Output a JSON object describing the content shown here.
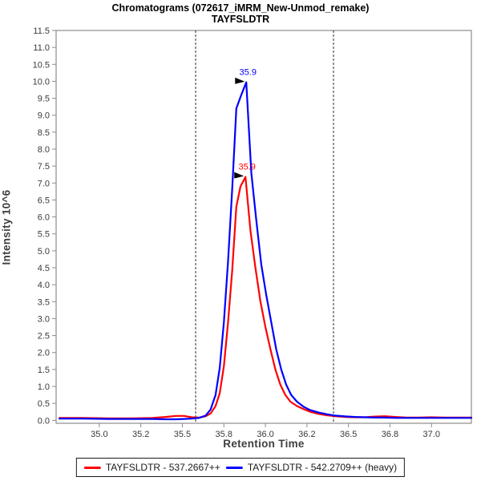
{
  "title": {
    "line1": "Chromatograms (072617_iMRM_New-Unmod_remake)",
    "line2": "TAYFSLDTR"
  },
  "chart_data": {
    "type": "line",
    "title": "Chromatograms (072617_iMRM_New-Unmod_remake)",
    "subtitle": "TAYFSLDTR",
    "xlabel": "Retention Time",
    "ylabel": "Intensity 10^6",
    "xlim": [
      34.74,
      37.24
    ],
    "ylim": [
      0,
      11.5
    ],
    "grid": false,
    "legend_position": "bottom",
    "y_ticks": {
      "min": 0,
      "max": 11.5,
      "step": 0.5,
      "decimals": 1
    },
    "x_ticks": {
      "values": [
        35.0,
        35.25,
        35.5,
        35.75,
        36.0,
        36.25,
        36.5,
        36.75,
        37.0
      ],
      "labels": [
        "35.0",
        "35.2",
        "35.5",
        "35.8",
        "36.0",
        "36.2",
        "36.5",
        "36.8",
        "37.0"
      ]
    },
    "integration_boundaries": [
      35.58,
      36.41
    ],
    "series": [
      {
        "name": "TAYFSLDTR - 537.2667++",
        "color": "#ff0000",
        "peak_annotation": "35.9",
        "points": [
          [
            34.76,
            0.07
          ],
          [
            34.9,
            0.07
          ],
          [
            35.05,
            0.06
          ],
          [
            35.2,
            0.06
          ],
          [
            35.32,
            0.07
          ],
          [
            35.4,
            0.1
          ],
          [
            35.46,
            0.13
          ],
          [
            35.51,
            0.13
          ],
          [
            35.555,
            0.09
          ],
          [
            35.6,
            0.08
          ],
          [
            35.64,
            0.12
          ],
          [
            35.67,
            0.2
          ],
          [
            35.7,
            0.42
          ],
          [
            35.725,
            0.8
          ],
          [
            35.75,
            1.6
          ],
          [
            35.775,
            2.9
          ],
          [
            35.8,
            4.4
          ],
          [
            35.825,
            6.3
          ],
          [
            35.85,
            6.9
          ],
          [
            35.88,
            7.18
          ],
          [
            35.91,
            5.6
          ],
          [
            35.94,
            4.5
          ],
          [
            35.97,
            3.5
          ],
          [
            36.0,
            2.75
          ],
          [
            36.03,
            2.1
          ],
          [
            36.06,
            1.5
          ],
          [
            36.09,
            1.05
          ],
          [
            36.12,
            0.75
          ],
          [
            36.15,
            0.55
          ],
          [
            36.19,
            0.42
          ],
          [
            36.23,
            0.33
          ],
          [
            36.27,
            0.25
          ],
          [
            36.32,
            0.19
          ],
          [
            36.37,
            0.15
          ],
          [
            36.42,
            0.12
          ],
          [
            36.48,
            0.1
          ],
          [
            36.54,
            0.09
          ],
          [
            36.6,
            0.09
          ],
          [
            36.66,
            0.11
          ],
          [
            36.72,
            0.12
          ],
          [
            36.78,
            0.1
          ],
          [
            36.85,
            0.08
          ],
          [
            36.92,
            0.08
          ],
          [
            37.0,
            0.09
          ],
          [
            37.08,
            0.08
          ],
          [
            37.16,
            0.08
          ],
          [
            37.24,
            0.08
          ]
        ]
      },
      {
        "name": "TAYFSLDTR - 542.2709++ (heavy)",
        "color": "#0000ff",
        "peak_annotation": "35.9",
        "points": [
          [
            34.76,
            0.05
          ],
          [
            34.9,
            0.05
          ],
          [
            35.05,
            0.04
          ],
          [
            35.2,
            0.04
          ],
          [
            35.32,
            0.04
          ],
          [
            35.4,
            0.03
          ],
          [
            35.46,
            0.03
          ],
          [
            35.51,
            0.04
          ],
          [
            35.555,
            0.05
          ],
          [
            35.6,
            0.07
          ],
          [
            35.64,
            0.14
          ],
          [
            35.67,
            0.32
          ],
          [
            35.7,
            0.75
          ],
          [
            35.725,
            1.55
          ],
          [
            35.75,
            2.9
          ],
          [
            35.775,
            4.7
          ],
          [
            35.8,
            6.8
          ],
          [
            35.825,
            9.2
          ],
          [
            35.855,
            9.6
          ],
          [
            35.885,
            9.97
          ],
          [
            35.915,
            7.3
          ],
          [
            35.945,
            5.9
          ],
          [
            35.975,
            4.6
          ],
          [
            36.005,
            3.7
          ],
          [
            36.035,
            2.9
          ],
          [
            36.065,
            2.1
          ],
          [
            36.095,
            1.5
          ],
          [
            36.125,
            1.05
          ],
          [
            36.155,
            0.75
          ],
          [
            36.19,
            0.55
          ],
          [
            36.23,
            0.4
          ],
          [
            36.27,
            0.3
          ],
          [
            36.32,
            0.23
          ],
          [
            36.37,
            0.18
          ],
          [
            36.42,
            0.14
          ],
          [
            36.48,
            0.115
          ],
          [
            36.54,
            0.1
          ],
          [
            36.6,
            0.09
          ],
          [
            36.66,
            0.08
          ],
          [
            36.72,
            0.08
          ],
          [
            36.78,
            0.07
          ],
          [
            36.85,
            0.07
          ],
          [
            36.92,
            0.07
          ],
          [
            37.0,
            0.07
          ],
          [
            37.08,
            0.07
          ],
          [
            37.16,
            0.07
          ],
          [
            37.24,
            0.07
          ]
        ]
      }
    ],
    "annotation_arrow_color": "#000000"
  },
  "colors": {
    "axis": "#8c8c8c",
    "tick_text": "#3a3a3a",
    "boundary_line": "#2b2b2b",
    "background": "#ffffff"
  }
}
